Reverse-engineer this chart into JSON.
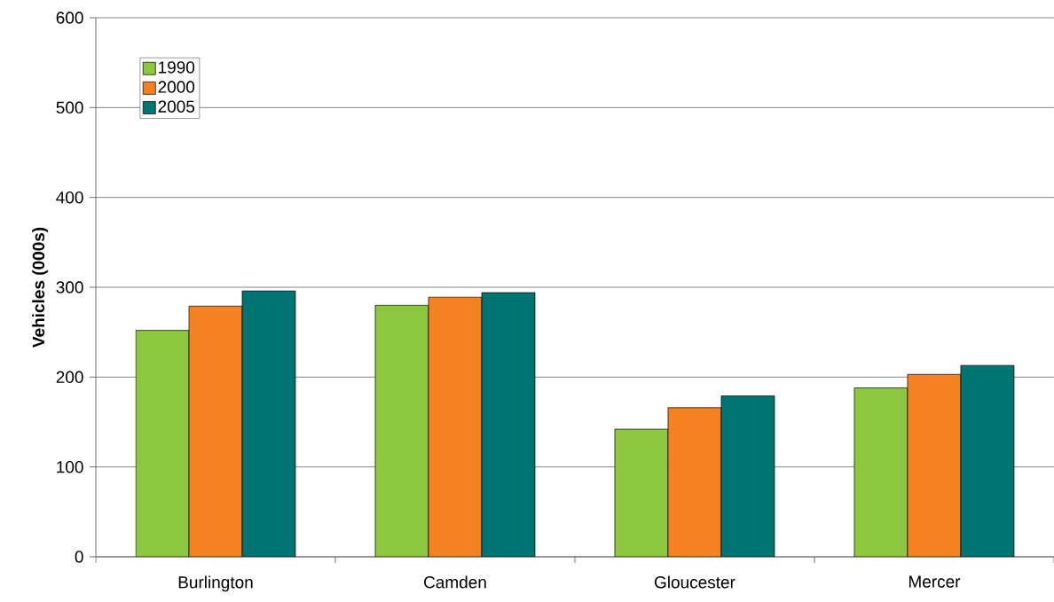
{
  "chart_data": {
    "type": "bar",
    "ylabel": "Vehicles (000s)",
    "categories": [
      "Burlington",
      "Camden",
      "Gloucester",
      "Mercer"
    ],
    "series": [
      {
        "name": "1990",
        "color": "#8dc63f",
        "values": [
          252,
          280,
          142,
          188
        ]
      },
      {
        "name": "2000",
        "color": "#f58220",
        "values": [
          279,
          289,
          166,
          203
        ]
      },
      {
        "name": "2005",
        "color": "#007472",
        "values": [
          296,
          294,
          179,
          213
        ]
      }
    ],
    "ylim": [
      0,
      600
    ],
    "yticks": [
      0,
      100,
      200,
      300,
      400,
      500,
      600
    ],
    "grid": "y",
    "legend": "top left"
  }
}
